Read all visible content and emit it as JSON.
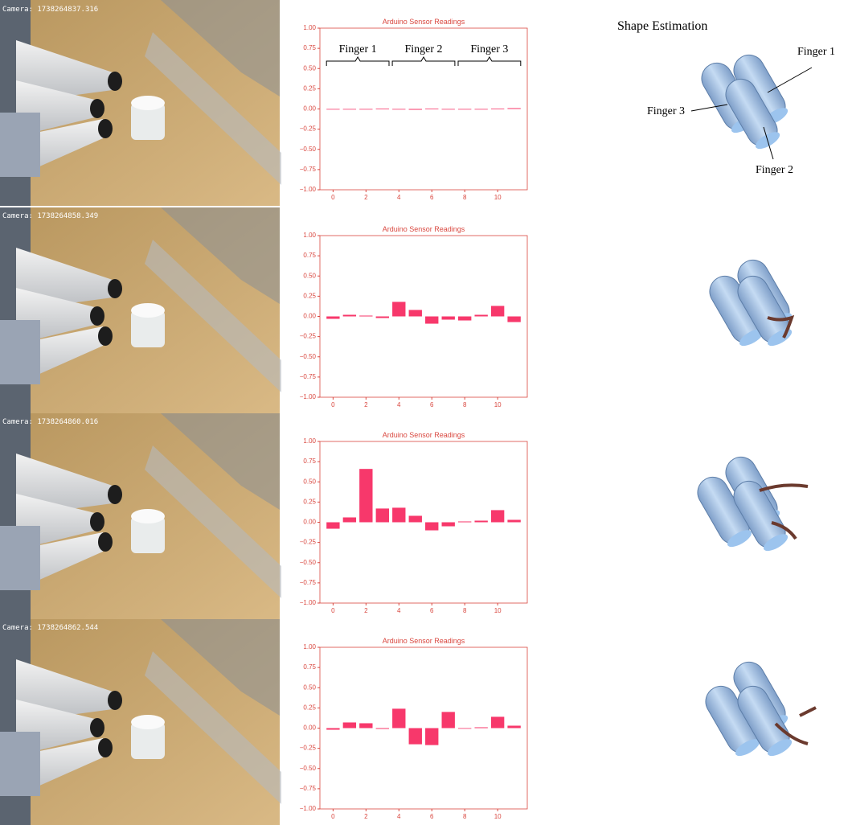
{
  "cameras": [
    "Camera: 1738264837.316",
    "Camera: 1738264858.349",
    "Camera: 1738264860.016",
    "Camera: 1738264862.544"
  ],
  "shape_estimation": {
    "title": "Shape Estimation",
    "labels": [
      "Finger 1",
      "Finger 3",
      "Finger 2"
    ]
  },
  "chart_data": [
    {
      "type": "bar",
      "title": "Arduino Sensor Readings",
      "color": "#f7386b",
      "annotations": [
        "Finger 1",
        "Finger 2",
        "Finger 3"
      ],
      "x": [
        0,
        1,
        2,
        3,
        4,
        5,
        6,
        7,
        8,
        9,
        10,
        11
      ],
      "values": [
        0.0,
        0.0,
        0.0,
        0.005,
        0.0,
        -0.01,
        0.005,
        0.0,
        0.0,
        0.0,
        0.005,
        0.01
      ],
      "xlim": [
        -0.8,
        11.8
      ],
      "xticks": [
        0,
        2,
        4,
        6,
        8,
        10
      ],
      "ylim": [
        -1,
        1
      ],
      "yticks": [
        {
          "value": -1,
          "label": "−1.00"
        },
        {
          "value": -0.75,
          "label": "−0.75"
        },
        {
          "value": -0.5,
          "label": "−0.50"
        },
        {
          "value": -0.25,
          "label": "−0.25"
        },
        {
          "value": 0,
          "label": "0.00"
        },
        {
          "value": 0.25,
          "label": "0.25"
        },
        {
          "value": 0.5,
          "label": "0.50"
        },
        {
          "value": 0.75,
          "label": "0.75"
        },
        {
          "value": 1,
          "label": "1.00"
        }
      ]
    },
    {
      "type": "bar",
      "title": "Arduino Sensor Readings",
      "color": "#f7386b",
      "x": [
        0,
        1,
        2,
        3,
        4,
        5,
        6,
        7,
        8,
        9,
        10,
        11
      ],
      "values": [
        -0.03,
        0.02,
        0.01,
        -0.02,
        0.18,
        0.08,
        -0.09,
        -0.04,
        -0.05,
        0.02,
        0.13,
        -0.07
      ],
      "xlim": [
        -0.8,
        11.8
      ],
      "xticks": [
        0,
        2,
        4,
        6,
        8,
        10
      ],
      "ylim": [
        -1,
        1
      ],
      "yticks": [
        {
          "value": -1,
          "label": "−1.00"
        },
        {
          "value": -0.75,
          "label": "−0.75"
        },
        {
          "value": -0.5,
          "label": "−0.50"
        },
        {
          "value": -0.25,
          "label": "−0.25"
        },
        {
          "value": 0,
          "label": "0.00"
        },
        {
          "value": 0.25,
          "label": "0.25"
        },
        {
          "value": 0.5,
          "label": "0.50"
        },
        {
          "value": 0.75,
          "label": "0.75"
        },
        {
          "value": 1,
          "label": "1.00"
        }
      ]
    },
    {
      "type": "bar",
      "title": "Arduino Sensor Readings",
      "color": "#f7386b",
      "x": [
        0,
        1,
        2,
        3,
        4,
        5,
        6,
        7,
        8,
        9,
        10,
        11
      ],
      "values": [
        -0.08,
        0.06,
        0.66,
        0.17,
        0.18,
        0.08,
        -0.1,
        -0.05,
        0.01,
        0.02,
        0.15,
        0.03
      ],
      "xlim": [
        -0.8,
        11.8
      ],
      "xticks": [
        0,
        2,
        4,
        6,
        8,
        10
      ],
      "ylim": [
        -1,
        1
      ],
      "yticks": [
        {
          "value": -1,
          "label": "−1.00"
        },
        {
          "value": -0.75,
          "label": "−0.75"
        },
        {
          "value": -0.5,
          "label": "−0.50"
        },
        {
          "value": -0.25,
          "label": "−0.25"
        },
        {
          "value": 0,
          "label": "0.00"
        },
        {
          "value": 0.25,
          "label": "0.25"
        },
        {
          "value": 0.5,
          "label": "0.50"
        },
        {
          "value": 0.75,
          "label": "0.75"
        },
        {
          "value": 1,
          "label": "1.00"
        }
      ]
    },
    {
      "type": "bar",
      "title": "Arduino Sensor Readings",
      "color": "#f7386b",
      "x": [
        0,
        1,
        2,
        3,
        4,
        5,
        6,
        7,
        8,
        9,
        10,
        11
      ],
      "values": [
        -0.02,
        0.07,
        0.06,
        -0.01,
        0.24,
        -0.2,
        -0.21,
        0.2,
        0.0,
        0.01,
        0.14,
        0.03
      ],
      "xlim": [
        -0.8,
        11.8
      ],
      "xticks": [
        0,
        2,
        4,
        6,
        8,
        10
      ],
      "ylim": [
        -1,
        1
      ],
      "yticks": [
        {
          "value": -1,
          "label": "−1.00"
        },
        {
          "value": -0.75,
          "label": "−0.75"
        },
        {
          "value": -0.5,
          "label": "−0.50"
        },
        {
          "value": -0.25,
          "label": "−0.25"
        },
        {
          "value": 0,
          "label": "0.00"
        },
        {
          "value": 0.25,
          "label": "0.25"
        },
        {
          "value": 0.5,
          "label": "0.50"
        },
        {
          "value": 0.75,
          "label": "0.75"
        },
        {
          "value": 1,
          "label": "1.00"
        }
      ]
    }
  ]
}
